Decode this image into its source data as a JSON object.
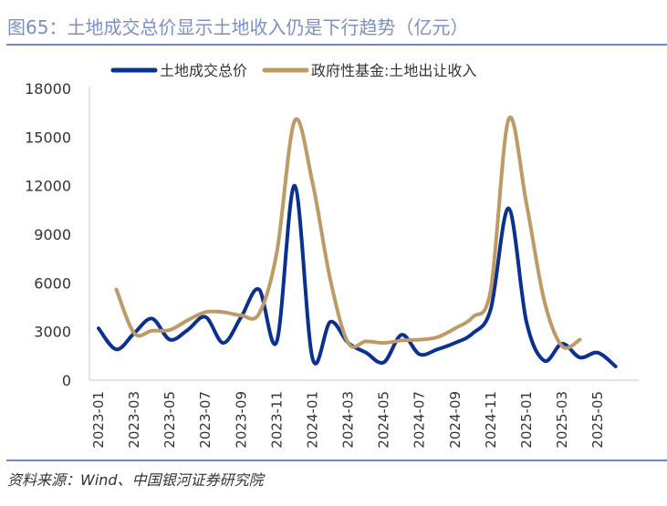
{
  "title": "图65：土地成交总价显示土地收入仍是下行趋势（亿元）",
  "source": "资料来源：Wind、中国银河证券研究院",
  "colors": {
    "series1": "#0a318f",
    "series2": "#bd9a66",
    "axis": "#d9d9d9",
    "title": "#7b90c4"
  },
  "chart_data": {
    "type": "line",
    "title": "土地成交总价显示土地收入仍是下行趋势（亿元）",
    "xlabel": "",
    "ylabel": "",
    "ylim": [
      0,
      18000
    ],
    "yticks": [
      "0",
      "3000",
      "6000",
      "9000",
      "12000",
      "15000",
      "18000"
    ],
    "ytick_values": [
      0,
      3000,
      6000,
      9000,
      12000,
      15000,
      18000
    ],
    "legend_position": "top",
    "grid": false,
    "x": [
      "2023-01",
      "2023-02",
      "2023-03",
      "2023-04",
      "2023-05",
      "2023-06",
      "2023-07",
      "2023-08",
      "2023-09",
      "2023-10",
      "2023-11",
      "2023-12",
      "2024-01",
      "2024-02",
      "2024-03",
      "2024-04",
      "2024-05",
      "2024-06",
      "2024-07",
      "2024-08",
      "2024-09",
      "2024-10",
      "2024-11",
      "2024-12",
      "2025-01",
      "2025-02",
      "2025-03",
      "2025-04",
      "2025-05",
      "2025-06"
    ],
    "xtick_labels": [
      "2023-01",
      "2023-03",
      "2023-05",
      "2023-07",
      "2023-09",
      "2023-11",
      "2024-01",
      "2024-03",
      "2024-05",
      "2024-07",
      "2024-09",
      "2024-11",
      "2025-01",
      "2025-03",
      "2025-05"
    ],
    "series": [
      {
        "name": "土地成交总价",
        "values": [
          3200,
          1900,
          2900,
          3800,
          2500,
          3100,
          3900,
          2300,
          3900,
          5600,
          2400,
          12000,
          1350,
          3600,
          2300,
          1700,
          1100,
          2800,
          1600,
          1900,
          2300,
          2900,
          4400,
          10600,
          3600,
          1200,
          2250,
          1400,
          1700,
          850
        ]
      },
      {
        "name": "政府性基金:土地出让收入",
        "values": [
          null,
          5600,
          2900,
          3050,
          3100,
          3700,
          4200,
          4200,
          4000,
          4100,
          7900,
          16000,
          12200,
          6200,
          2300,
          2400,
          2300,
          2450,
          2500,
          2650,
          3200,
          3900,
          5600,
          16100,
          10900,
          4900,
          2100,
          2500,
          null,
          null
        ]
      }
    ]
  }
}
